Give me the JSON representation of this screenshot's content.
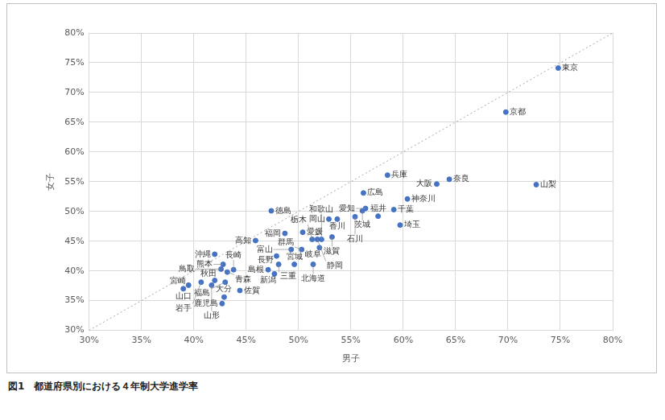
{
  "chart_data": {
    "type": "scatter",
    "title": "図1　都道府県別における４年制大学進学率",
    "x_label": "男子",
    "y_label": "女子",
    "point_labels": [
      "東京",
      "京都",
      "山梨",
      "奈良",
      "大阪",
      "兵庫",
      "神奈川",
      "千葉",
      "埼玉",
      "福井",
      "広島",
      "愛知",
      "茨城",
      "石川",
      "香川",
      "岡山",
      "滋賀",
      "和歌山",
      "愛媛",
      "栃木",
      "静岡",
      "岐阜",
      "群馬",
      "北海道",
      "宮城",
      "富山",
      "福岡",
      "徳島",
      "高知",
      "長野",
      "三重",
      "島根",
      "新潟",
      "佐賀",
      "大分",
      "鹿児島",
      "長崎",
      "沖縄",
      "熊本",
      "青森",
      "鳥取",
      "秋田",
      "福島",
      "宮崎",
      "山口",
      "岩手",
      "山形"
    ],
    "x": [
      74.8,
      69.8,
      72.7,
      64.4,
      63.2,
      58.5,
      60.4,
      59.1,
      59.7,
      57.6,
      56.2,
      56.4,
      56.1,
      55.4,
      53.7,
      52.9,
      53.2,
      52.2,
      50.4,
      51.3,
      51.8,
      52.0,
      50.3,
      51.4,
      49.6,
      49.3,
      48.7,
      47.4,
      45.9,
      47.9,
      48.1,
      47.1,
      47.7,
      44.4,
      42.9,
      42.7,
      43.8,
      42.0,
      42.8,
      43.2,
      42.6,
      42.0,
      43.0,
      39.5,
      39.0,
      40.7,
      41.7
    ],
    "values": [
      74.1,
      66.7,
      54.5,
      55.4,
      54.6,
      56.1,
      52.1,
      50.3,
      47.7,
      49.2,
      53.1,
      50.5,
      50.1,
      49.1,
      48.7,
      48.7,
      45.7,
      45.3,
      46.5,
      45.3,
      45.3,
      43.9,
      43.6,
      41.1,
      41.1,
      43.6,
      46.3,
      50.1,
      45.1,
      42.5,
      41.1,
      40.2,
      39.5,
      36.7,
      35.6,
      34.5,
      40.2,
      42.8,
      41.1,
      39.8,
      40.3,
      38.4,
      38.1,
      37.6,
      37.0,
      38.1,
      37.6
    ],
    "color": "#4472c4",
    "marker": "circle",
    "grid": true,
    "xlim": [
      30,
      80
    ],
    "ylim": [
      30,
      80
    ],
    "xticks": [
      {
        "value": 30,
        "label": "30%"
      },
      {
        "value": 35,
        "label": "35%"
      },
      {
        "value": 40,
        "label": "40%"
      },
      {
        "value": 45,
        "label": "45%"
      },
      {
        "value": 50,
        "label": "50%"
      },
      {
        "value": 55,
        "label": "55%"
      },
      {
        "value": 60,
        "label": "60%"
      },
      {
        "value": 65,
        "label": "65%"
      },
      {
        "value": 70,
        "label": "70%"
      },
      {
        "value": 75,
        "label": "75%"
      },
      {
        "value": 80,
        "label": "80%"
      }
    ],
    "yticks": [
      {
        "value": 30,
        "label": "30%"
      },
      {
        "value": 35,
        "label": "35%"
      },
      {
        "value": 40,
        "label": "40%"
      },
      {
        "value": 45,
        "label": "45%"
      },
      {
        "value": 50,
        "label": "50%"
      },
      {
        "value": 55,
        "label": "55%"
      },
      {
        "value": 60,
        "label": "60%"
      },
      {
        "value": 65,
        "label": "65%"
      },
      {
        "value": 70,
        "label": "70%"
      },
      {
        "value": 75,
        "label": "75%"
      },
      {
        "value": 80,
        "label": "80%"
      }
    ]
  }
}
